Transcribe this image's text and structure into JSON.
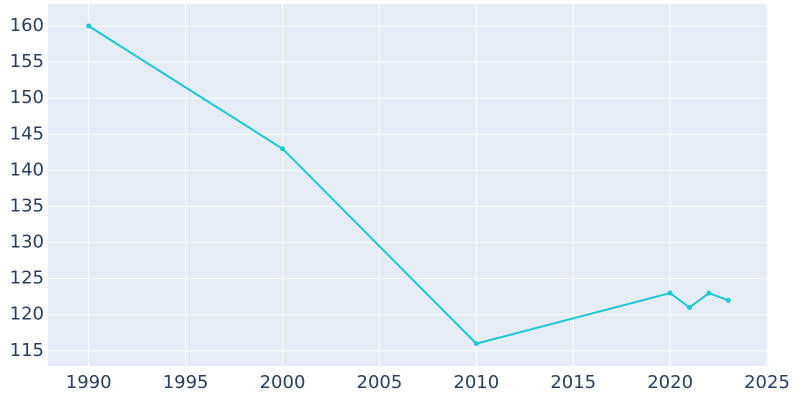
{
  "chart_data": {
    "type": "line",
    "x": [
      1990,
      2000,
      2010,
      2020,
      2021,
      2022,
      2023
    ],
    "series": [
      {
        "color": "#17c8d2",
        "values": [
          160,
          143,
          116,
          123,
          121,
          123,
          122
        ]
      }
    ],
    "xlim": [
      1987.9,
      2025.05
    ],
    "xticks": [
      1990,
      1995,
      2000,
      2005,
      2010,
      2015,
      2020,
      2025
    ],
    "ylim": [
      112.9,
      163.05
    ],
    "yticks": [
      115,
      120,
      125,
      130,
      135,
      140,
      145,
      150,
      155,
      160
    ],
    "grid": true,
    "background": "#e5ecf6"
  }
}
